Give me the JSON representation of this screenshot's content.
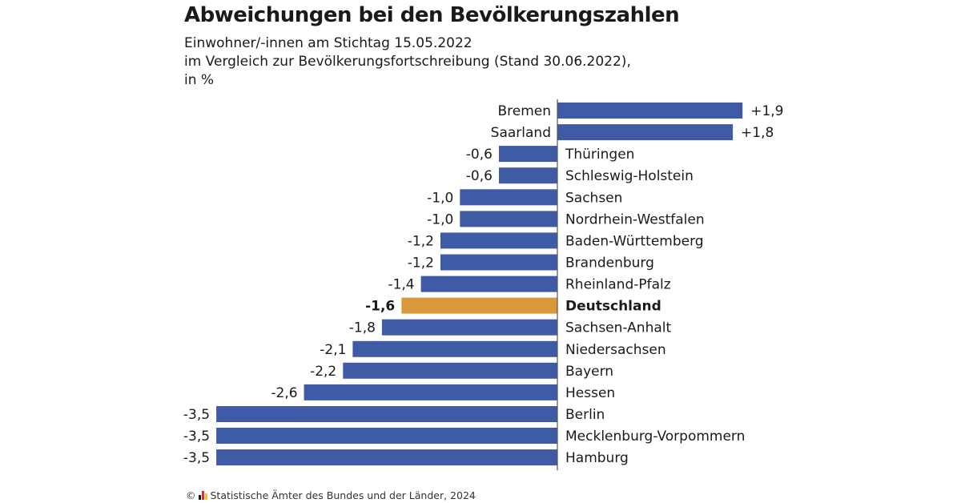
{
  "header": {
    "title": "Abweichungen bei den Bevölkerungszahlen",
    "subtitle_line1": "Einwohner/-innen am Stichtag 15.05.2022",
    "subtitle_line2": "im Vergleich zur Bevölkerungsfortschreibung (Stand 30.06.2022),",
    "subtitle_line3": "in %"
  },
  "footer": {
    "copyright_symbol": "©",
    "source": "Statistische Ämter des Bundes und der Länder, 2024",
    "logo_icon": "destatis-flag-icon"
  },
  "colors": {
    "bar_default": "#3F5BA5",
    "bar_highlight": "#D9993B",
    "axis": "#555555",
    "text": "#1a1a1a"
  },
  "chart_data": {
    "type": "bar",
    "orientation": "horizontal",
    "title": "Abweichungen bei den Bevölkerungszahlen",
    "unit": "%",
    "categories": [
      "Bremen",
      "Saarland",
      "Thüringen",
      "Schleswig-Holstein",
      "Sachsen",
      "Nordrhein-Westfalen",
      "Baden-Württemberg",
      "Brandenburg",
      "Rheinland-Pfalz",
      "Deutschland",
      "Sachsen-Anhalt",
      "Niedersachsen",
      "Bayern",
      "Hessen",
      "Berlin",
      "Mecklenburg-Vorpommern",
      "Hamburg"
    ],
    "values": [
      1.9,
      1.8,
      -0.6,
      -0.6,
      -1.0,
      -1.0,
      -1.2,
      -1.2,
      -1.4,
      -1.6,
      -1.8,
      -2.1,
      -2.2,
      -2.6,
      -3.5,
      -3.5,
      -3.5
    ],
    "value_labels": [
      "+1,9",
      "+1,8",
      "-0,6",
      "-0,6",
      "-1,0",
      "-1,0",
      "-1,2",
      "-1,2",
      "-1,4",
      "-1,6",
      "-1,8",
      "-2,1",
      "-2,2",
      "-2,6",
      "-3,5",
      "-3,5",
      "-3,5"
    ],
    "highlight": "Deutschland",
    "xlim": [
      -3.5,
      1.9
    ],
    "grid": false,
    "legend": "none"
  }
}
